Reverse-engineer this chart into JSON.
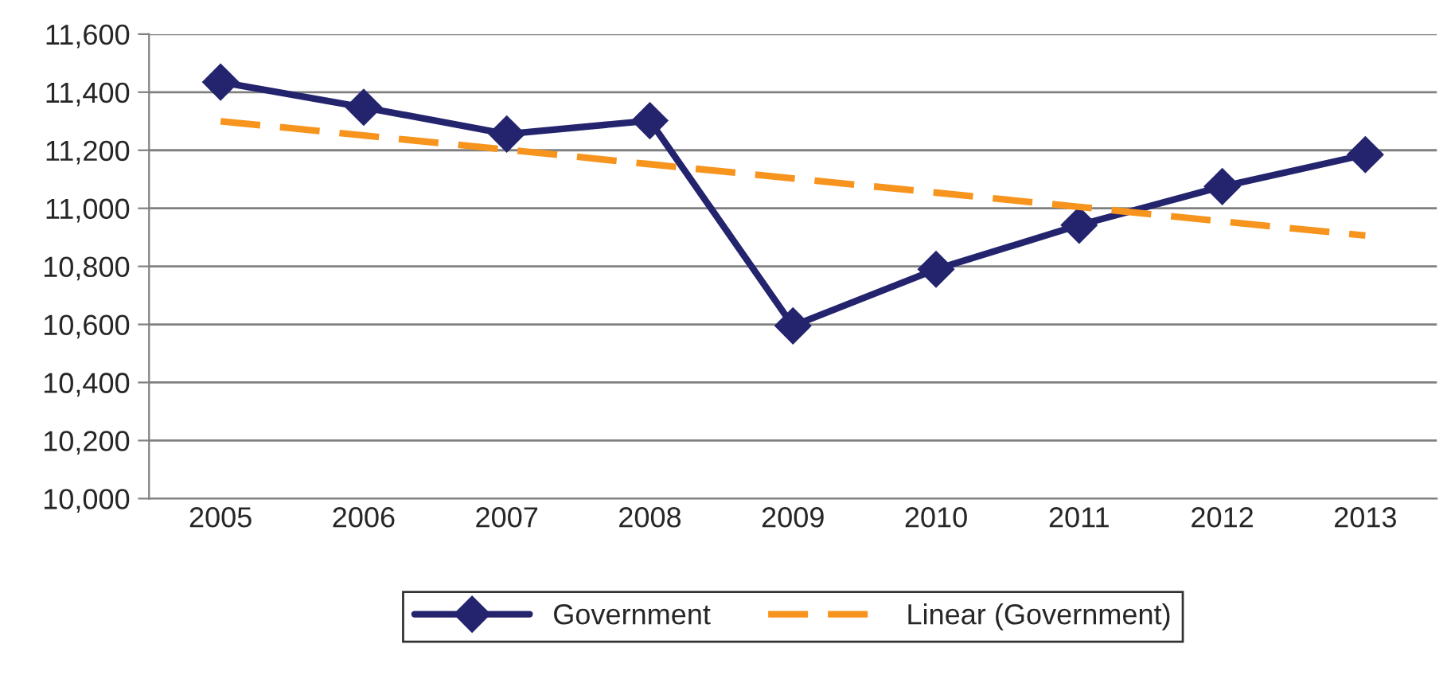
{
  "chart_data": {
    "type": "line",
    "categories": [
      "2005",
      "2006",
      "2007",
      "2008",
      "2009",
      "2010",
      "2011",
      "2012",
      "2013"
    ],
    "series": [
      {
        "name": "Government",
        "color": "#24246e",
        "marker": "diamond",
        "line_style": "solid",
        "values": [
          11435,
          11348,
          11256,
          11302,
          10595,
          10790,
          10942,
          11075,
          11185
        ]
      },
      {
        "name": "Linear (Government)",
        "color": "#f7941d",
        "marker": "none",
        "line_style": "dashed",
        "values": [
          11300,
          11251,
          11202,
          11152,
          11103,
          11054,
          11005,
          10955,
          10906
        ]
      }
    ],
    "ylim": [
      10000,
      11600
    ],
    "yticks": [
      {
        "value": 10000,
        "label": "10,000"
      },
      {
        "value": 10200,
        "label": "10,200"
      },
      {
        "value": 10400,
        "label": "10,400"
      },
      {
        "value": 10600,
        "label": "10,600"
      },
      {
        "value": 10800,
        "label": "10,800"
      },
      {
        "value": 11000,
        "label": "11,000"
      },
      {
        "value": 11200,
        "label": "11,200"
      },
      {
        "value": 11400,
        "label": "11,400"
      },
      {
        "value": 11600,
        "label": "11,600"
      }
    ],
    "grid": "y",
    "legend": "bottom"
  }
}
